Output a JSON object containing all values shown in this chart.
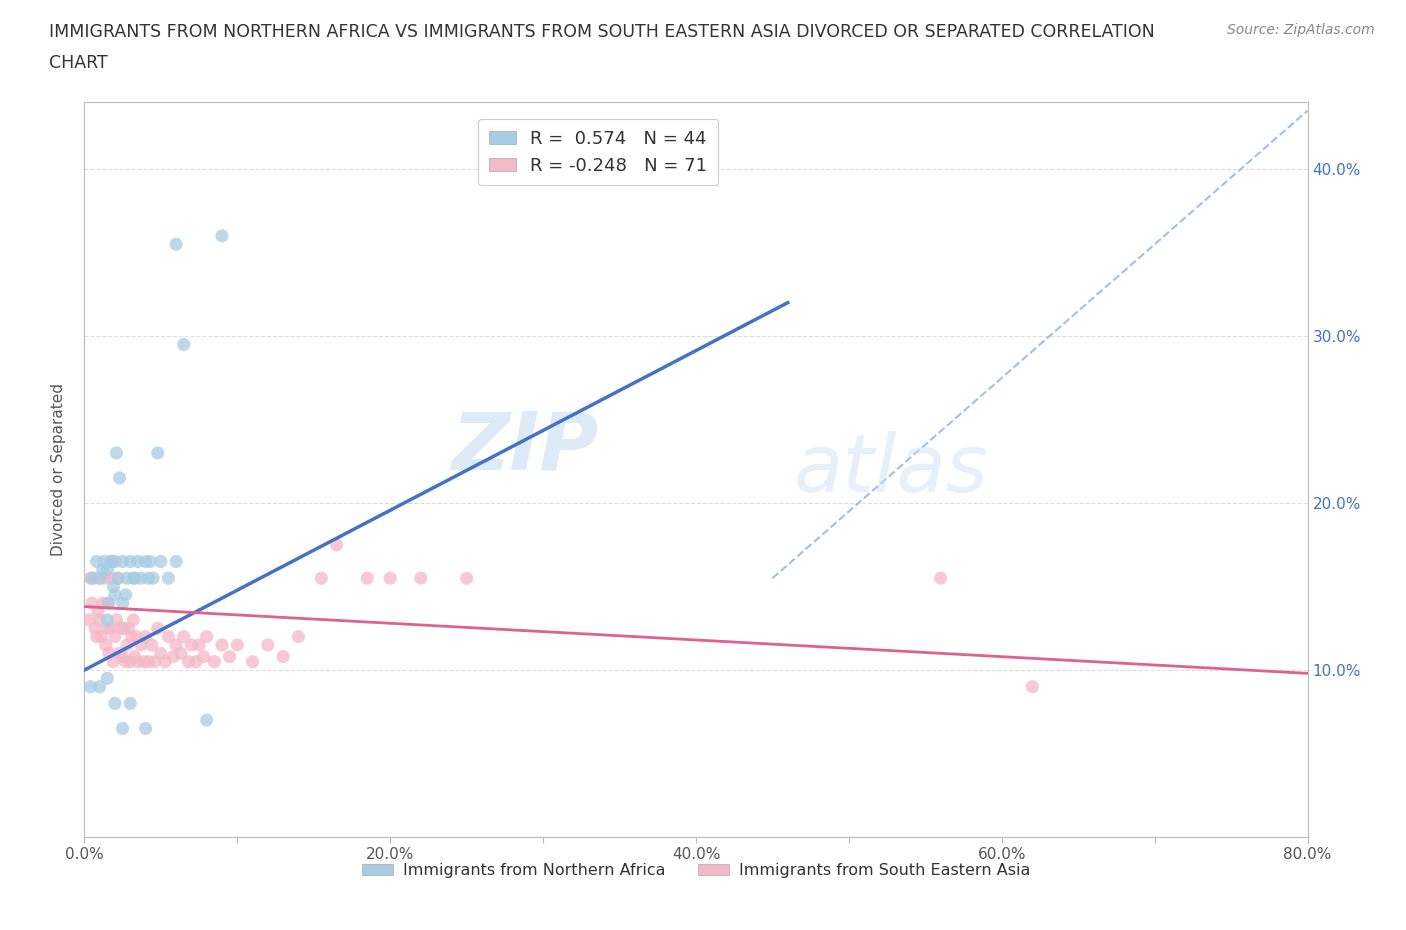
{
  "title_line1": "IMMIGRANTS FROM NORTHERN AFRICA VS IMMIGRANTS FROM SOUTH EASTERN ASIA DIVORCED OR SEPARATED CORRELATION",
  "title_line2": "CHART",
  "source": "Source: ZipAtlas.com",
  "ylabel": "Divorced or Separated",
  "xlim": [
    0.0,
    0.8
  ],
  "ylim": [
    0.0,
    0.44
  ],
  "xticks": [
    0.0,
    0.1,
    0.2,
    0.3,
    0.4,
    0.5,
    0.6,
    0.7,
    0.8
  ],
  "xticklabels": [
    "0.0%",
    "",
    "20.0%",
    "",
    "40.0%",
    "",
    "60.0%",
    "",
    "80.0%"
  ],
  "ytick_positions": [
    0.0,
    0.1,
    0.2,
    0.3,
    0.4
  ],
  "ytick_right_labels": [
    "",
    "10.0%",
    "20.0%",
    "30.0%",
    "40.0%"
  ],
  "color_blue": "#a8cce4",
  "color_pink": "#f4b8c8",
  "color_blue_line": "#4472c4",
  "color_pink_line": "#e06090",
  "color_dashed_line": "#a0c0e8",
  "watermark_zip": "ZIP",
  "watermark_atlas": "atlas",
  "blue_scatter_x": [
    0.005,
    0.008,
    0.01,
    0.012,
    0.013,
    0.015,
    0.015,
    0.016,
    0.017,
    0.018,
    0.019,
    0.02,
    0.02,
    0.021,
    0.022,
    0.023,
    0.025,
    0.025,
    0.027,
    0.028,
    0.03,
    0.032,
    0.033,
    0.035,
    0.037,
    0.04,
    0.042,
    0.043,
    0.045,
    0.048,
    0.05,
    0.055,
    0.06,
    0.065,
    0.01,
    0.015,
    0.02,
    0.025,
    0.03,
    0.04,
    0.09,
    0.004,
    0.06,
    0.08
  ],
  "blue_scatter_y": [
    0.155,
    0.165,
    0.155,
    0.16,
    0.165,
    0.13,
    0.16,
    0.14,
    0.165,
    0.165,
    0.15,
    0.145,
    0.165,
    0.23,
    0.155,
    0.215,
    0.14,
    0.165,
    0.145,
    0.155,
    0.165,
    0.155,
    0.155,
    0.165,
    0.155,
    0.165,
    0.155,
    0.165,
    0.155,
    0.23,
    0.165,
    0.155,
    0.165,
    0.295,
    0.09,
    0.095,
    0.08,
    0.065,
    0.08,
    0.065,
    0.36,
    0.09,
    0.355,
    0.07
  ],
  "pink_scatter_x": [
    0.003,
    0.004,
    0.005,
    0.006,
    0.007,
    0.008,
    0.009,
    0.01,
    0.01,
    0.011,
    0.012,
    0.013,
    0.014,
    0.015,
    0.015,
    0.016,
    0.017,
    0.018,
    0.019,
    0.02,
    0.021,
    0.022,
    0.023,
    0.024,
    0.025,
    0.026,
    0.027,
    0.028,
    0.029,
    0.03,
    0.031,
    0.032,
    0.033,
    0.034,
    0.035,
    0.037,
    0.039,
    0.04,
    0.042,
    0.044,
    0.046,
    0.048,
    0.05,
    0.053,
    0.055,
    0.058,
    0.06,
    0.063,
    0.065,
    0.068,
    0.07,
    0.073,
    0.075,
    0.078,
    0.08,
    0.085,
    0.09,
    0.095,
    0.1,
    0.11,
    0.12,
    0.13,
    0.14,
    0.155,
    0.165,
    0.185,
    0.2,
    0.22,
    0.25,
    0.56,
    0.62
  ],
  "pink_scatter_y": [
    0.13,
    0.155,
    0.14,
    0.155,
    0.125,
    0.12,
    0.135,
    0.13,
    0.155,
    0.12,
    0.14,
    0.155,
    0.115,
    0.125,
    0.14,
    0.11,
    0.125,
    0.155,
    0.105,
    0.12,
    0.13,
    0.155,
    0.11,
    0.125,
    0.108,
    0.125,
    0.105,
    0.115,
    0.125,
    0.105,
    0.12,
    0.13,
    0.108,
    0.12,
    0.105,
    0.115,
    0.105,
    0.12,
    0.105,
    0.115,
    0.105,
    0.125,
    0.11,
    0.105,
    0.12,
    0.108,
    0.115,
    0.11,
    0.12,
    0.105,
    0.115,
    0.105,
    0.115,
    0.108,
    0.12,
    0.105,
    0.115,
    0.108,
    0.115,
    0.105,
    0.115,
    0.108,
    0.12,
    0.155,
    0.175,
    0.155,
    0.155,
    0.155,
    0.155,
    0.155,
    0.09
  ],
  "blue_line_x": [
    0.0,
    0.46
  ],
  "blue_line_y": [
    0.1,
    0.32
  ],
  "pink_line_x": [
    0.0,
    0.8
  ],
  "pink_line_y": [
    0.138,
    0.098
  ],
  "dashed_line_x": [
    0.45,
    0.8
  ],
  "dashed_line_y": [
    0.155,
    0.435
  ],
  "grid_color": "#dddddd",
  "background_color": "#ffffff",
  "legend_blue_r": "R =  0.574",
  "legend_blue_n": "N = 44",
  "legend_pink_r": "R = -0.248",
  "legend_pink_n": "N = 71",
  "bottom_legend_blue": "Immigrants from Northern Africa",
  "bottom_legend_pink": "Immigrants from South Eastern Asia"
}
